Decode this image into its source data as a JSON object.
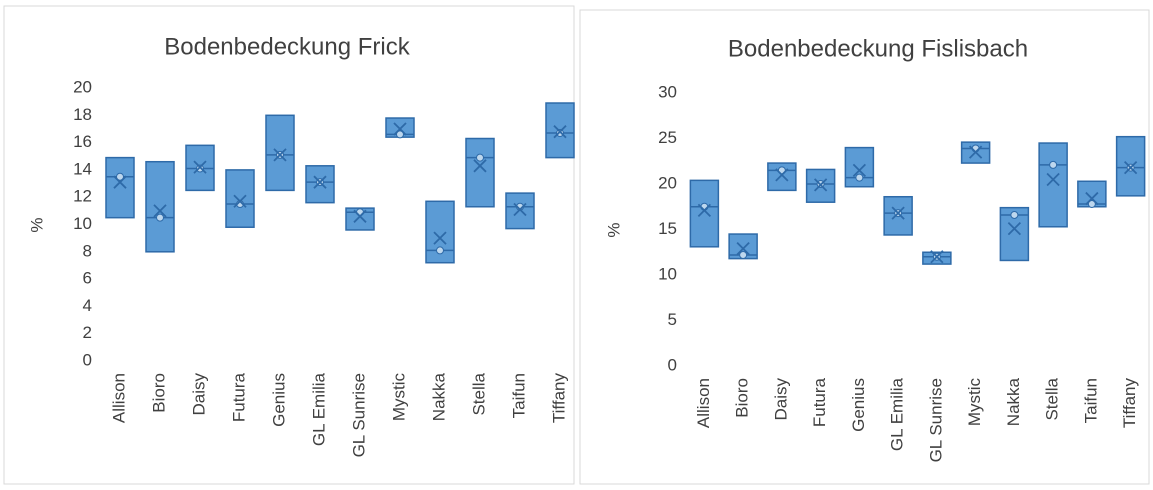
{
  "chart_data": [
    {
      "type": "box",
      "title": "Bodenbedeckung Frick",
      "y_label": "%",
      "categories": [
        "Allison",
        "Bioro",
        "Daisy",
        "Futura",
        "Genius",
        "GL Emilia",
        "GL Sunrise",
        "Mystic",
        "Nakka",
        "Stella",
        "Taifun",
        "Tiffany"
      ],
      "low": [
        10.5,
        8.0,
        12.5,
        9.8,
        12.5,
        11.6,
        9.6,
        16.4,
        7.2,
        11.3,
        9.7,
        14.9
      ],
      "high": [
        14.9,
        14.6,
        15.8,
        14.0,
        18.0,
        14.3,
        11.2,
        17.8,
        11.7,
        16.3,
        12.3,
        18.9
      ],
      "median": [
        13.5,
        10.5,
        14.1,
        11.5,
        15.1,
        13.1,
        10.9,
        16.6,
        8.1,
        14.9,
        11.3,
        16.7
      ],
      "mean": [
        13.1,
        11.0,
        14.2,
        11.7,
        15.1,
        13.1,
        10.6,
        17.0,
        9.0,
        14.3,
        11.1,
        16.8
      ],
      "color": "#5b9bd5",
      "ylim": [
        0,
        20
      ],
      "yticks": [
        0,
        2,
        4,
        6,
        8,
        10,
        12,
        14,
        16,
        18,
        20
      ]
    },
    {
      "type": "box",
      "title": "Bodenbedeckung Fislisbach",
      "y_label": "%",
      "categories": [
        "Allison",
        "Bioro",
        "Daisy",
        "Futura",
        "Genius",
        "GL Emilia",
        "GL Sunrise",
        "Mystic",
        "Nakka",
        "Stella",
        "Taifun",
        "Tiffany"
      ],
      "low": [
        13.1,
        11.8,
        19.3,
        18.0,
        19.7,
        14.4,
        11.2,
        22.3,
        11.6,
        15.3,
        17.5,
        18.7
      ],
      "high": [
        20.4,
        14.5,
        22.3,
        21.6,
        24.0,
        18.6,
        12.5,
        24.6,
        17.4,
        24.5,
        20.3,
        25.2
      ],
      "median": [
        17.5,
        12.2,
        21.5,
        20.0,
        20.7,
        16.8,
        12.0,
        23.9,
        16.6,
        22.1,
        17.8,
        21.8
      ],
      "mean": [
        17.1,
        12.9,
        21.0,
        19.9,
        21.5,
        16.8,
        12.0,
        23.5,
        15.1,
        20.5,
        18.4,
        21.8
      ],
      "color": "#5b9bd5",
      "ylim": [
        0,
        30
      ],
      "yticks": [
        0,
        5,
        10,
        15,
        20,
        25,
        30
      ]
    }
  ]
}
